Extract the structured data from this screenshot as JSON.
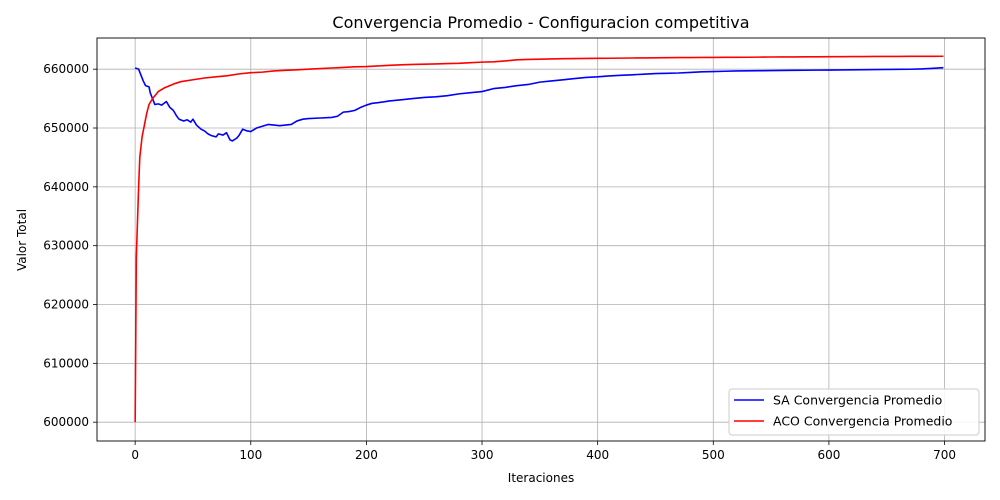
{
  "chart_data": {
    "type": "line",
    "title": "Convergencia Promedio - Configuracion competitiva",
    "xlabel": "Iteraciones",
    "ylabel": "Valor Total",
    "xlim": [
      -33,
      735
    ],
    "ylim": [
      596800,
      665300
    ],
    "xticks": [
      0,
      100,
      200,
      300,
      400,
      500,
      600,
      700
    ],
    "yticks": [
      600000,
      610000,
      620000,
      630000,
      640000,
      650000,
      660000
    ],
    "grid": true,
    "legend_position": "lower-right",
    "series": [
      {
        "name": "SA Convergencia Promedio",
        "color": "#0000ff",
        "points": [
          [
            0,
            660200
          ],
          [
            3,
            660000
          ],
          [
            5,
            659000
          ],
          [
            7,
            658000
          ],
          [
            9,
            657200
          ],
          [
            12,
            657000
          ],
          [
            13,
            656000
          ],
          [
            15,
            655000
          ],
          [
            17,
            654000
          ],
          [
            20,
            654100
          ],
          [
            23,
            653900
          ],
          [
            25,
            654200
          ],
          [
            27,
            654500
          ],
          [
            30,
            653500
          ],
          [
            33,
            653000
          ],
          [
            36,
            652000
          ],
          [
            38,
            651500
          ],
          [
            42,
            651200
          ],
          [
            45,
            651400
          ],
          [
            48,
            651000
          ],
          [
            50,
            651500
          ],
          [
            53,
            650500
          ],
          [
            57,
            649800
          ],
          [
            60,
            649500
          ],
          [
            63,
            649000
          ],
          [
            66,
            648700
          ],
          [
            70,
            648500
          ],
          [
            72,
            649000
          ],
          [
            76,
            648800
          ],
          [
            79,
            649200
          ],
          [
            82,
            648000
          ],
          [
            84,
            647800
          ],
          [
            88,
            648300
          ],
          [
            90,
            648800
          ],
          [
            93,
            649800
          ],
          [
            97,
            649500
          ],
          [
            100,
            649400
          ],
          [
            105,
            650000
          ],
          [
            110,
            650300
          ],
          [
            115,
            650600
          ],
          [
            120,
            650500
          ],
          [
            125,
            650400
          ],
          [
            130,
            650500
          ],
          [
            135,
            650600
          ],
          [
            140,
            651200
          ],
          [
            145,
            651500
          ],
          [
            150,
            651600
          ],
          [
            160,
            651700
          ],
          [
            170,
            651800
          ],
          [
            175,
            652000
          ],
          [
            180,
            652700
          ],
          [
            185,
            652800
          ],
          [
            190,
            653000
          ],
          [
            195,
            653500
          ],
          [
            200,
            653900
          ],
          [
            205,
            654200
          ],
          [
            210,
            654300
          ],
          [
            220,
            654600
          ],
          [
            230,
            654800
          ],
          [
            240,
            655000
          ],
          [
            250,
            655200
          ],
          [
            260,
            655300
          ],
          [
            270,
            655500
          ],
          [
            280,
            655800
          ],
          [
            290,
            656000
          ],
          [
            300,
            656200
          ],
          [
            310,
            656700
          ],
          [
            320,
            656900
          ],
          [
            330,
            657200
          ],
          [
            340,
            657400
          ],
          [
            350,
            657800
          ],
          [
            360,
            658000
          ],
          [
            370,
            658200
          ],
          [
            380,
            658400
          ],
          [
            390,
            658600
          ],
          [
            400,
            658700
          ],
          [
            410,
            658850
          ],
          [
            420,
            658950
          ],
          [
            430,
            659050
          ],
          [
            440,
            659150
          ],
          [
            450,
            659250
          ],
          [
            460,
            659300
          ],
          [
            470,
            659350
          ],
          [
            480,
            659450
          ],
          [
            490,
            659550
          ],
          [
            500,
            659600
          ],
          [
            510,
            659650
          ],
          [
            520,
            659700
          ],
          [
            530,
            659720
          ],
          [
            540,
            659740
          ],
          [
            550,
            659760
          ],
          [
            560,
            659780
          ],
          [
            570,
            659800
          ],
          [
            580,
            659820
          ],
          [
            590,
            659840
          ],
          [
            600,
            659850
          ],
          [
            610,
            659870
          ],
          [
            620,
            659890
          ],
          [
            630,
            659910
          ],
          [
            640,
            659930
          ],
          [
            650,
            659950
          ],
          [
            660,
            659970
          ],
          [
            670,
            659990
          ],
          [
            680,
            660050
          ],
          [
            690,
            660150
          ],
          [
            699,
            660250
          ]
        ]
      },
      {
        "name": "ACO Convergencia Promedio",
        "color": "#ff0000",
        "points": [
          [
            0,
            600000
          ],
          [
            1,
            628000
          ],
          [
            2,
            634000
          ],
          [
            3,
            640000
          ],
          [
            4,
            645000
          ],
          [
            6,
            648500
          ],
          [
            8,
            650500
          ],
          [
            10,
            652500
          ],
          [
            12,
            654000
          ],
          [
            15,
            655000
          ],
          [
            18,
            655700
          ],
          [
            20,
            656200
          ],
          [
            25,
            656800
          ],
          [
            30,
            657200
          ],
          [
            35,
            657600
          ],
          [
            40,
            657900
          ],
          [
            50,
            658200
          ],
          [
            60,
            658500
          ],
          [
            70,
            658700
          ],
          [
            80,
            658900
          ],
          [
            90,
            659200
          ],
          [
            100,
            659400
          ],
          [
            110,
            659500
          ],
          [
            120,
            659700
          ],
          [
            130,
            659800
          ],
          [
            140,
            659900
          ],
          [
            150,
            660000
          ],
          [
            160,
            660100
          ],
          [
            170,
            660200
          ],
          [
            180,
            660300
          ],
          [
            190,
            660400
          ],
          [
            200,
            660450
          ],
          [
            210,
            660550
          ],
          [
            220,
            660650
          ],
          [
            230,
            660750
          ],
          [
            240,
            660800
          ],
          [
            250,
            660850
          ],
          [
            260,
            660900
          ],
          [
            270,
            660950
          ],
          [
            280,
            661000
          ],
          [
            290,
            661100
          ],
          [
            300,
            661200
          ],
          [
            310,
            661250
          ],
          [
            320,
            661400
          ],
          [
            330,
            661600
          ],
          [
            340,
            661650
          ],
          [
            350,
            661700
          ],
          [
            360,
            661750
          ],
          [
            370,
            661780
          ],
          [
            380,
            661800
          ],
          [
            390,
            661820
          ],
          [
            400,
            661840
          ],
          [
            410,
            661860
          ],
          [
            420,
            661880
          ],
          [
            430,
            661900
          ],
          [
            440,
            661920
          ],
          [
            450,
            661940
          ],
          [
            460,
            661960
          ],
          [
            470,
            661970
          ],
          [
            480,
            661980
          ],
          [
            490,
            661990
          ],
          [
            500,
            662000
          ],
          [
            510,
            662010
          ],
          [
            520,
            662020
          ],
          [
            530,
            662030
          ],
          [
            540,
            662050
          ],
          [
            550,
            662070
          ],
          [
            560,
            662080
          ],
          [
            570,
            662090
          ],
          [
            580,
            662100
          ],
          [
            590,
            662110
          ],
          [
            600,
            662120
          ],
          [
            610,
            662130
          ],
          [
            620,
            662140
          ],
          [
            630,
            662150
          ],
          [
            640,
            662160
          ],
          [
            650,
            662170
          ],
          [
            660,
            662175
          ],
          [
            670,
            662180
          ],
          [
            680,
            662185
          ],
          [
            690,
            662190
          ],
          [
            699,
            662200
          ]
        ]
      }
    ]
  }
}
